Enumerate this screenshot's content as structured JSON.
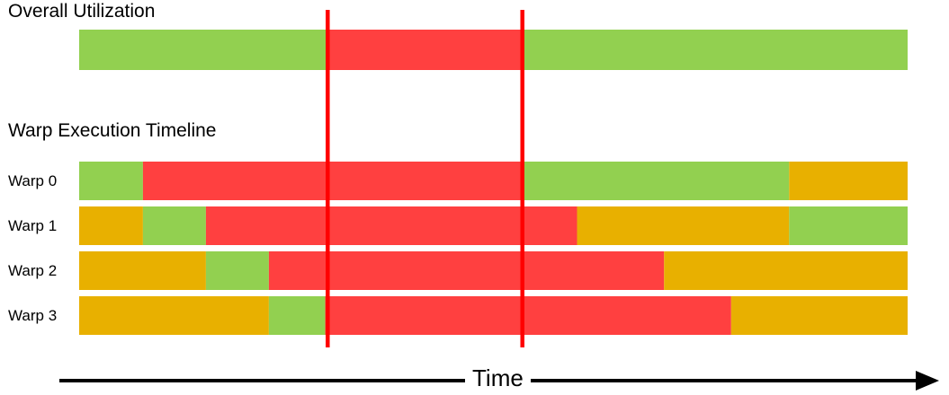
{
  "colors": {
    "active": "#92d050",
    "stalled": "#ff4040",
    "waiting": "#e8b000",
    "marker": "#ff0000",
    "axis": "#000000"
  },
  "overall": {
    "title": "Overall Utilization",
    "segments": [
      {
        "state": "active",
        "from": 0.0,
        "to": 0.3
      },
      {
        "state": "stalled",
        "from": 0.3,
        "to": 0.535
      },
      {
        "state": "active",
        "from": 0.535,
        "to": 1.0
      }
    ]
  },
  "timeline": {
    "title": "Warp Execution Timeline",
    "warps": [
      {
        "label": "Warp 0",
        "segments": [
          {
            "state": "active",
            "from": 0.0,
            "to": 0.077
          },
          {
            "state": "stalled",
            "from": 0.077,
            "to": 0.537
          },
          {
            "state": "active",
            "from": 0.537,
            "to": 0.857
          },
          {
            "state": "waiting",
            "from": 0.857,
            "to": 1.0
          }
        ]
      },
      {
        "label": "Warp 1",
        "segments": [
          {
            "state": "waiting",
            "from": 0.0,
            "to": 0.077
          },
          {
            "state": "active",
            "from": 0.077,
            "to": 0.153
          },
          {
            "state": "stalled",
            "from": 0.153,
            "to": 0.601
          },
          {
            "state": "waiting",
            "from": 0.601,
            "to": 0.857
          },
          {
            "state": "active",
            "from": 0.857,
            "to": 1.0
          }
        ]
      },
      {
        "label": "Warp 2",
        "segments": [
          {
            "state": "waiting",
            "from": 0.0,
            "to": 0.153
          },
          {
            "state": "active",
            "from": 0.153,
            "to": 0.229
          },
          {
            "state": "stalled",
            "from": 0.229,
            "to": 0.706
          },
          {
            "state": "waiting",
            "from": 0.706,
            "to": 1.0
          }
        ]
      },
      {
        "label": "Warp 3",
        "segments": [
          {
            "state": "waiting",
            "from": 0.0,
            "to": 0.229
          },
          {
            "state": "active",
            "from": 0.229,
            "to": 0.297
          },
          {
            "state": "stalled",
            "from": 0.297,
            "to": 0.787
          },
          {
            "state": "waiting",
            "from": 0.787,
            "to": 1.0
          }
        ]
      }
    ]
  },
  "markers": [
    0.3,
    0.535
  ],
  "axis": {
    "label": "Time"
  }
}
